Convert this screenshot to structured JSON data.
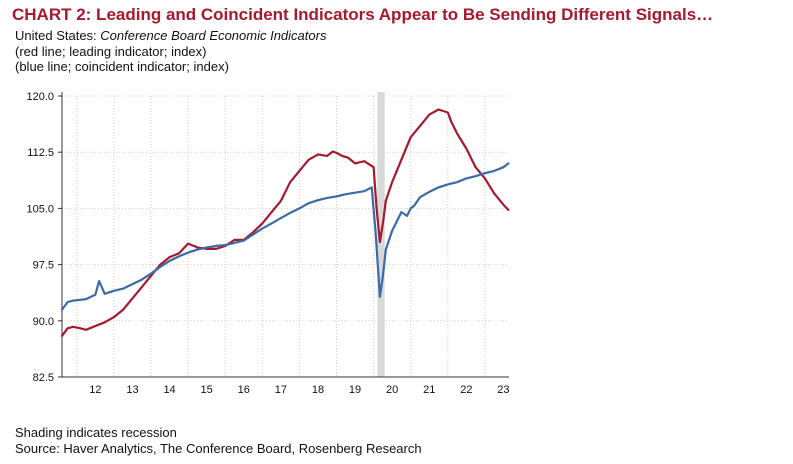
{
  "title": "CHART 2: Leading and Coincident Indicators Appear to Be Sending Different Signals…",
  "subtitle": {
    "prefix": "United States: ",
    "source_name": "Conference Board Economic Indicators",
    "red_note": "(red line; leading indicator; index)",
    "blue_note": "(blue line; coincident indicator; index)"
  },
  "footer": {
    "shading_note": "Shading indicates recession",
    "source": "Source: Haver Analytics, The Conference Board, Rosenberg Research"
  },
  "colors": {
    "leading": "#a6192e",
    "coincident": "#3b6aa8",
    "recession": "#d9d9d9",
    "grid": "#cfcfcf"
  },
  "chart_data": {
    "type": "line",
    "xlim": [
      2011.6,
      2023.65
    ],
    "ylim": [
      82.5,
      120.0
    ],
    "yticks": [
      "82.5",
      "90.0",
      "97.5",
      "105.0",
      "112.5",
      "120.0"
    ],
    "xticks": [
      {
        "x": 2012,
        "label": "12"
      },
      {
        "x": 2013,
        "label": "13"
      },
      {
        "x": 2014,
        "label": "14"
      },
      {
        "x": 2015,
        "label": "15"
      },
      {
        "x": 2016,
        "label": "16"
      },
      {
        "x": 2017,
        "label": "17"
      },
      {
        "x": 2018,
        "label": "18"
      },
      {
        "x": 2019,
        "label": "19"
      },
      {
        "x": 2020,
        "label": "20"
      },
      {
        "x": 2021,
        "label": "21"
      },
      {
        "x": 2022,
        "label": "22"
      },
      {
        "x": 2023,
        "label": "23"
      }
    ],
    "recession": [
      2020.1,
      2020.3
    ],
    "grid": true,
    "series": [
      {
        "key": "leading",
        "x": [
          2011.6,
          2011.75,
          2011.9,
          2012.1,
          2012.25,
          2012.5,
          2012.75,
          2013.0,
          2013.25,
          2013.5,
          2013.75,
          2014.0,
          2014.25,
          2014.5,
          2014.75,
          2015.0,
          2015.25,
          2015.5,
          2015.75,
          2016.0,
          2016.25,
          2016.5,
          2016.75,
          2017.0,
          2017.25,
          2017.5,
          2017.75,
          2018.0,
          2018.25,
          2018.5,
          2018.75,
          2018.9,
          2019.0,
          2019.15,
          2019.3,
          2019.5,
          2019.75,
          2020.0,
          2020.08,
          2020.17,
          2020.25,
          2020.33,
          2020.5,
          2020.75,
          2021.0,
          2021.25,
          2021.5,
          2021.75,
          2022.0,
          2022.1,
          2022.25,
          2022.5,
          2022.75,
          2023.0,
          2023.25,
          2023.5,
          2023.63
        ],
        "values": [
          88.0,
          89.0,
          89.2,
          89.0,
          88.8,
          89.3,
          89.8,
          90.5,
          91.5,
          93.0,
          94.5,
          96.0,
          97.5,
          98.5,
          99.0,
          100.3,
          99.8,
          99.6,
          99.6,
          100.0,
          100.8,
          100.8,
          101.8,
          103.0,
          104.5,
          106.0,
          108.5,
          110.0,
          111.5,
          112.2,
          112.0,
          112.6,
          112.4,
          112.0,
          111.8,
          111.0,
          111.3,
          110.5,
          105.0,
          100.5,
          103.0,
          106.0,
          108.5,
          111.5,
          114.5,
          116.0,
          117.5,
          118.2,
          117.8,
          116.5,
          115.0,
          113.0,
          110.5,
          109.0,
          107.0,
          105.5,
          104.8
        ]
      },
      {
        "key": "coincident",
        "x": [
          2011.6,
          2011.75,
          2011.9,
          2012.1,
          2012.25,
          2012.5,
          2012.6,
          2012.75,
          2013.0,
          2013.25,
          2013.5,
          2013.75,
          2014.0,
          2014.25,
          2014.5,
          2014.75,
          2015.0,
          2015.25,
          2015.5,
          2015.75,
          2016.0,
          2016.25,
          2016.5,
          2016.75,
          2017.0,
          2017.25,
          2017.5,
          2017.75,
          2018.0,
          2018.25,
          2018.5,
          2018.75,
          2019.0,
          2019.25,
          2019.5,
          2019.75,
          2019.95,
          2020.05,
          2020.17,
          2020.25,
          2020.33,
          2020.5,
          2020.75,
          2020.9,
          2021.0,
          2021.1,
          2021.25,
          2021.5,
          2021.75,
          2022.0,
          2022.25,
          2022.5,
          2022.75,
          2023.0,
          2023.25,
          2023.5,
          2023.63
        ],
        "values": [
          91.5,
          92.5,
          92.7,
          92.8,
          92.9,
          93.5,
          95.3,
          93.6,
          94.0,
          94.3,
          94.9,
          95.5,
          96.3,
          97.2,
          98.0,
          98.6,
          99.1,
          99.5,
          99.8,
          100.0,
          100.1,
          100.4,
          100.7,
          101.5,
          102.3,
          103.0,
          103.7,
          104.4,
          105.0,
          105.7,
          106.1,
          106.4,
          106.6,
          106.9,
          107.1,
          107.3,
          107.8,
          102.0,
          93.2,
          96.0,
          99.5,
          102.0,
          104.5,
          104.0,
          105.0,
          105.4,
          106.5,
          107.2,
          107.8,
          108.2,
          108.5,
          109.0,
          109.3,
          109.7,
          110.0,
          110.5,
          111.0
        ]
      }
    ]
  }
}
